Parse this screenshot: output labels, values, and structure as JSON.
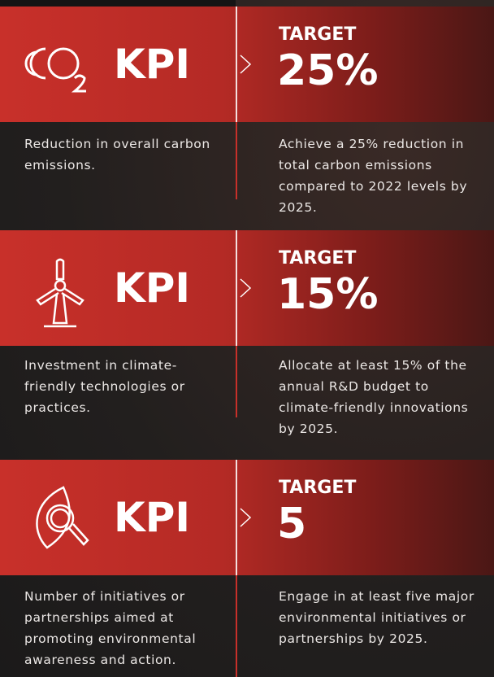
{
  "blocks": [
    {
      "kpi": "KPI",
      "target_label": "TARGET",
      "target": "25%",
      "description": "Reduction in overall carbon emissions.",
      "detail": "Achieve a 25% reduction in total carbon emissions compared to 2022 levels by 2025."
    },
    {
      "kpi": "KPI",
      "target_label": "TARGET",
      "target": "15%",
      "description": "Investment in climate-friendly technologies or practices.",
      "detail": "Allocate at least 15% of the annual R&D budget to climate-friendly innovations by 2025."
    },
    {
      "kpi": "KPI",
      "target_label": "TARGET",
      "target": "5",
      "description": "Number of initiatives or partnerships aimed at promoting environmental awareness and action.",
      "detail": "Engage in at least five major environmental initiatives or partnerships by 2025."
    }
  ]
}
